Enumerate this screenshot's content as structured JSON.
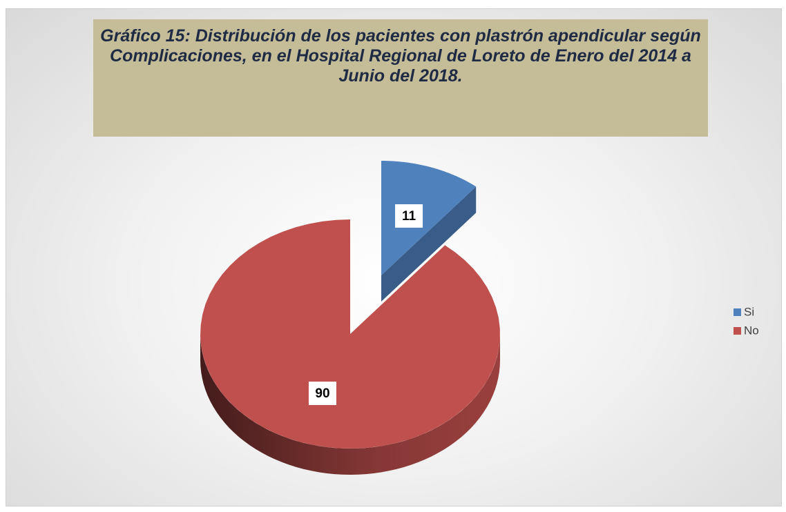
{
  "chart_data": {
    "type": "pie3d",
    "title": "Gráfico 15: Distribución de los pacientes con plastrón apendicular según Complicaciones, en el Hospital Regional de Loreto de Enero del 2014 a Junio del 2018.",
    "categories": [
      "Si",
      "No"
    ],
    "values": [
      11,
      90
    ],
    "colors": [
      "#4f81bd",
      "#c0504d"
    ],
    "legend": "right"
  }
}
